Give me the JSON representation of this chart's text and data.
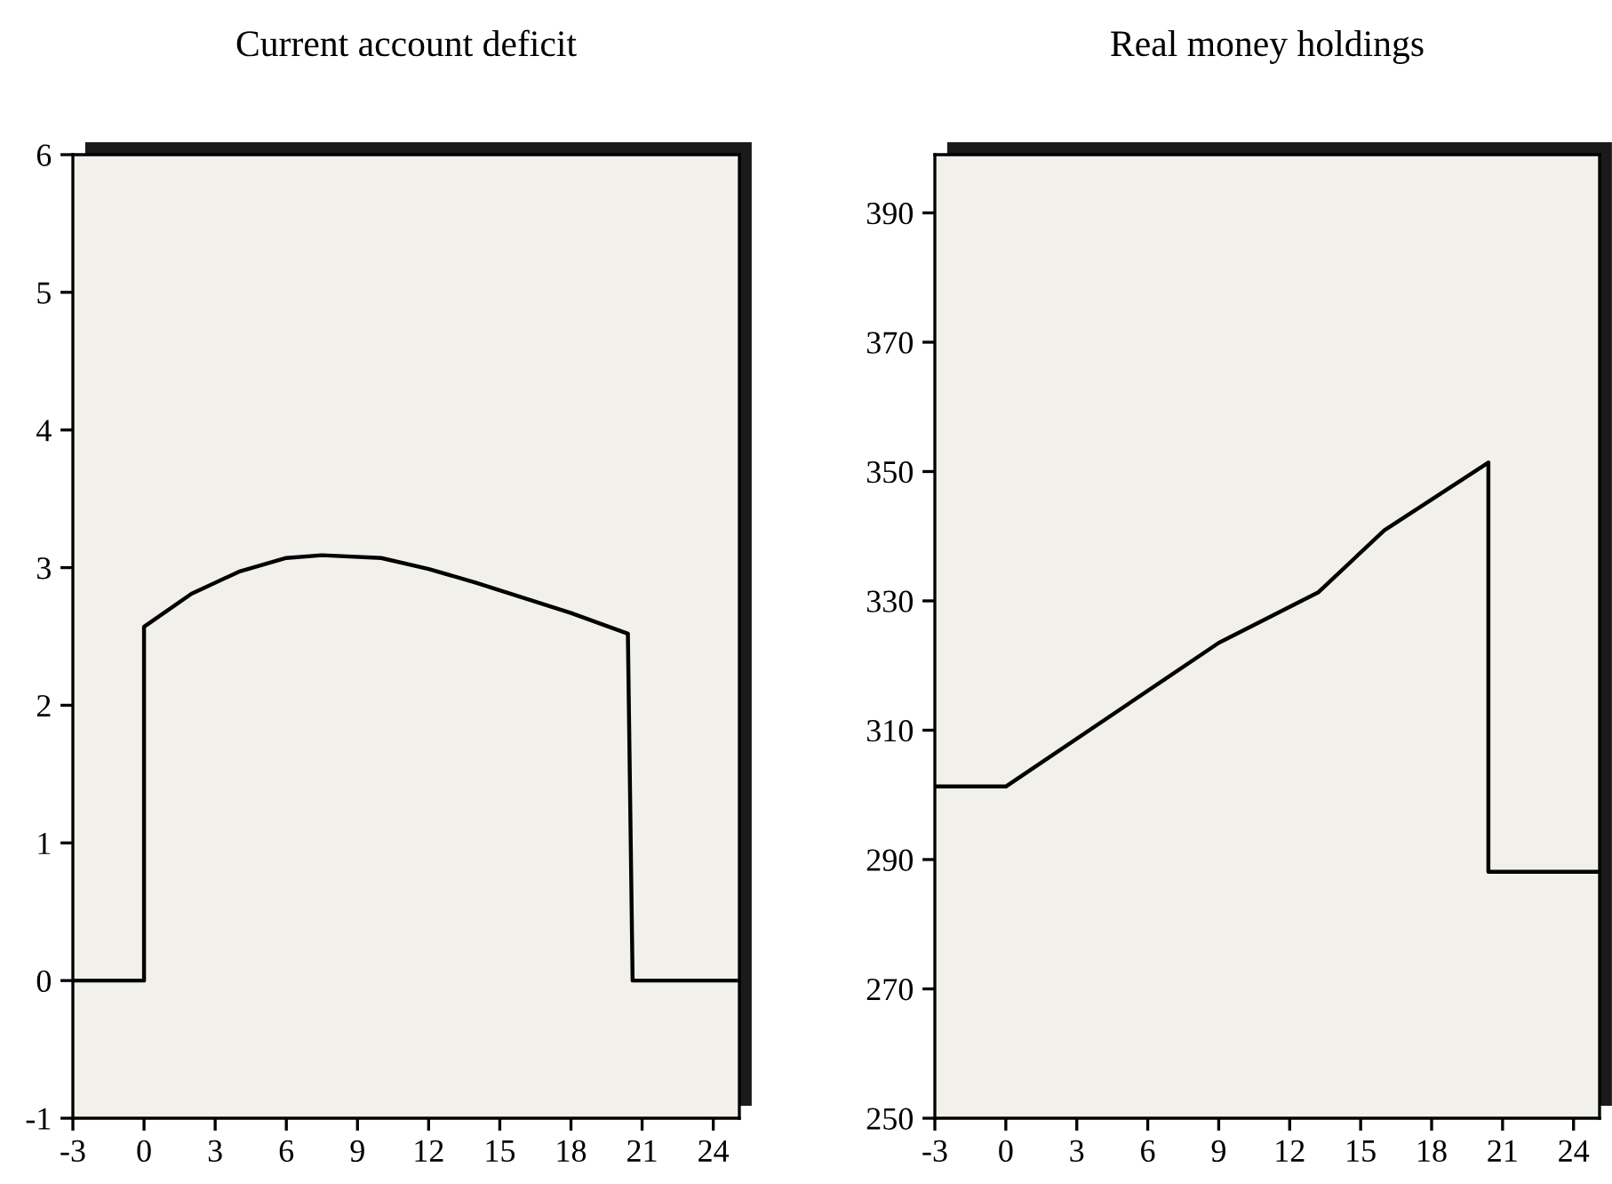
{
  "chart_data": [
    {
      "type": "line",
      "title": "Current account deficit",
      "color": "#000000",
      "x": [
        -3,
        0,
        0,
        2,
        4,
        6,
        7.5,
        10,
        12,
        14,
        16,
        18,
        20.4,
        20.6,
        25.1
      ],
      "values": [
        0,
        0,
        2.57,
        2.81,
        2.97,
        3.07,
        3.09,
        3.07,
        2.99,
        2.89,
        2.78,
        2.67,
        2.52,
        0,
        0
      ],
      "xlim": [
        -3,
        25.1
      ],
      "ylim": [
        -1,
        6
      ],
      "xticks": [
        -3,
        0,
        3,
        6,
        9,
        12,
        15,
        18,
        21,
        24
      ],
      "yticks": [
        -1,
        0,
        1,
        2,
        3,
        4,
        5,
        6
      ],
      "grid": false,
      "legend": false
    },
    {
      "type": "line",
      "title": "Real money holdings",
      "color": "#000000",
      "x": [
        -3,
        0,
        9,
        13.2,
        16,
        20.4,
        20.4,
        25.1
      ],
      "values": [
        301.3,
        301.3,
        323.5,
        331.3,
        340.9,
        351.4,
        288.1,
        288.1
      ],
      "xlim": [
        -3,
        25.1
      ],
      "ylim": [
        250,
        399
      ],
      "xticks": [
        -3,
        0,
        3,
        6,
        9,
        12,
        15,
        18,
        21,
        24
      ],
      "yticks": [
        250,
        270,
        290,
        310,
        330,
        350,
        370,
        390
      ],
      "grid": false,
      "legend": false
    }
  ]
}
